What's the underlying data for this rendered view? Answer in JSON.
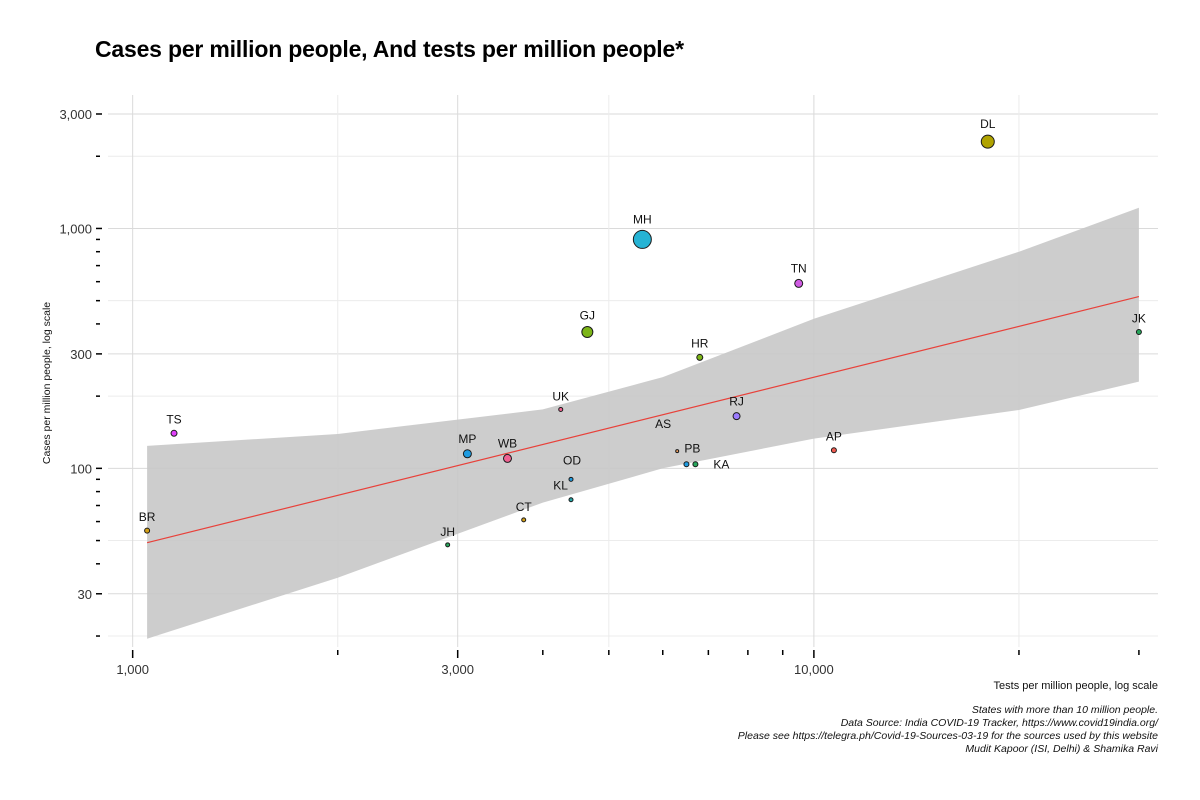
{
  "chart_data": {
    "type": "scatter",
    "title": "Cases per million people, And tests per million people*",
    "xlabel": "Tests per million people, log scale",
    "ylabel": "Cases per million people, log scale",
    "x_scale": "log",
    "y_scale": "log",
    "xlim": [
      920,
      32000
    ],
    "ylim": [
      18,
      3600
    ],
    "x_ticks": [
      {
        "value": 1000,
        "label": "1,000"
      },
      {
        "value": 3000,
        "label": "3,000"
      },
      {
        "value": 10000,
        "label": "10,000"
      }
    ],
    "y_ticks": [
      {
        "value": 30,
        "label": "30"
      },
      {
        "value": 100,
        "label": "100"
      },
      {
        "value": 300,
        "label": "300"
      },
      {
        "value": 1000,
        "label": "1,000"
      },
      {
        "value": 3000,
        "label": "3,000"
      }
    ],
    "points": [
      {
        "label": "BR",
        "x": 1050,
        "y": 55,
        "size": 2.5,
        "color": "#d4a017"
      },
      {
        "label": "TS",
        "x": 1150,
        "y": 140,
        "size": 3,
        "color": "#e040fb"
      },
      {
        "label": "JH",
        "x": 2900,
        "y": 48,
        "size": 2,
        "color": "#26a65b"
      },
      {
        "label": "MP",
        "x": 3100,
        "y": 115,
        "size": 4,
        "color": "#1e9be0"
      },
      {
        "label": "WB",
        "x": 3550,
        "y": 110,
        "size": 4,
        "color": "#f06292"
      },
      {
        "label": "CT",
        "x": 3750,
        "y": 61,
        "size": 2,
        "color": "#d4a017"
      },
      {
        "label": "UK",
        "x": 4250,
        "y": 176,
        "size": 2,
        "color": "#f06292"
      },
      {
        "label": "OD",
        "x": 4400,
        "y": 90,
        "size": 2,
        "color": "#1e9be0"
      },
      {
        "label": "KL",
        "x": 4400,
        "y": 74,
        "size": 2,
        "color": "#26a6a6"
      },
      {
        "label": "GJ",
        "x": 4650,
        "y": 370,
        "size": 5.5,
        "color": "#7cb518"
      },
      {
        "label": "MH",
        "x": 5600,
        "y": 900,
        "size": 9,
        "color": "#26b3d4"
      },
      {
        "label": "AS",
        "x": 6300,
        "y": 118,
        "size": 1.5,
        "color": "#f4a261"
      },
      {
        "label": "PB",
        "x": 6500,
        "y": 104,
        "size": 2.5,
        "color": "#1e9be0"
      },
      {
        "label": "KA",
        "x": 6700,
        "y": 104,
        "size": 2.5,
        "color": "#26a65b"
      },
      {
        "label": "HR",
        "x": 6800,
        "y": 290,
        "size": 3,
        "color": "#7cb518"
      },
      {
        "label": "RJ",
        "x": 7700,
        "y": 165,
        "size": 3.5,
        "color": "#9c7cff"
      },
      {
        "label": "TN",
        "x": 9500,
        "y": 590,
        "size": 4,
        "color": "#d05ce3"
      },
      {
        "label": "AP",
        "x": 10700,
        "y": 119,
        "size": 2.5,
        "color": "#f05a50"
      },
      {
        "label": "DL",
        "x": 18000,
        "y": 2300,
        "size": 6.5,
        "color": "#b0a300"
      },
      {
        "label": "JK",
        "x": 30000,
        "y": 370,
        "size": 2.5,
        "color": "#26a65b"
      }
    ],
    "trend_line": {
      "color": "#e8413a",
      "x": [
        1050,
        30000
      ],
      "y": [
        49,
        520
      ]
    },
    "confidence_band": {
      "color": "#c8c8c8",
      "x": [
        1050,
        2000,
        4000,
        6000,
        10000,
        20000,
        30000
      ],
      "upper": [
        124,
        139,
        176,
        240,
        420,
        800,
        1220
      ],
      "lower": [
        19.5,
        35,
        72,
        100,
        133,
        175,
        230
      ]
    }
  },
  "caption": {
    "line1": "States with more than 10 million people.",
    "line2": "Data Source: India COVID-19 Tracker, https://www.covid19india.org/",
    "line3": "Please see https://telegra.ph/Covid-19-Sources-03-19 for the sources used by this website",
    "line4": "Mudit Kapoor (ISI, Delhi) & Shamika Ravi"
  }
}
